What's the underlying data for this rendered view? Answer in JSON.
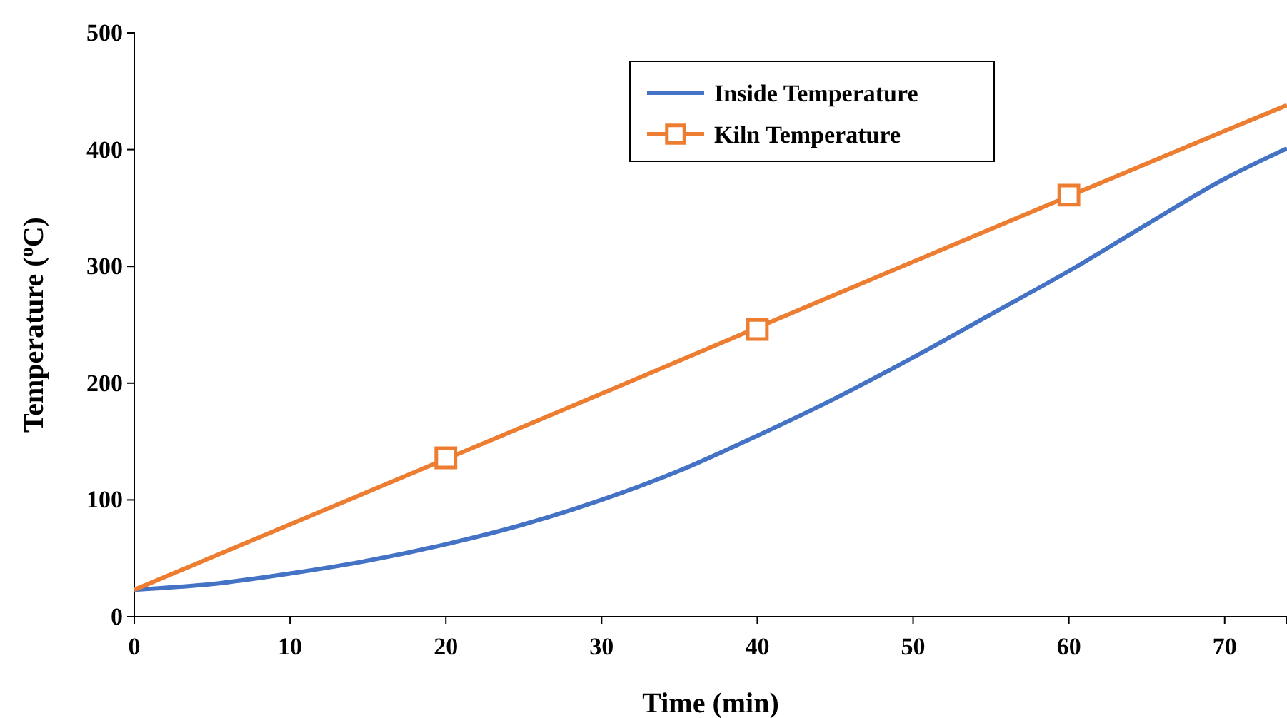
{
  "chart_data": {
    "type": "line",
    "xlabel": "Time (min)",
    "ylabel": "Temperature ($^{o}$C)",
    "xlim": [
      0,
      74
    ],
    "xticks": [
      0,
      10,
      20,
      30,
      40,
      50,
      60,
      70
    ],
    "ylim": [
      0,
      500
    ],
    "yticks": [
      0,
      100,
      200,
      300,
      400,
      500
    ],
    "legend": "top right",
    "line_style": "solid",
    "series": [
      {
        "name": "Inside Temperature",
        "color": "#4472c4",
        "x": [
          0,
          5,
          10,
          15,
          20,
          25,
          30,
          35,
          40,
          45,
          50,
          55,
          60,
          65,
          70,
          74
        ],
        "values": [
          23,
          28,
          37,
          48,
          62,
          79,
          100,
          125,
          155,
          187,
          222,
          259,
          296,
          336,
          375,
          401
        ]
      },
      {
        "name": "Kiln Temperature",
        "color": "#ed7d31",
        "x": [
          0,
          10,
          30,
          50,
          70,
          74
        ],
        "values": [
          23,
          79,
          191,
          304,
          416,
          438
        ]
      },
      {
        "type": "scatter",
        "color": "#ed7d31",
        "marker": "square",
        "x": [
          20,
          40,
          60
        ],
        "values": [
          136,
          246,
          361
        ]
      }
    ]
  }
}
